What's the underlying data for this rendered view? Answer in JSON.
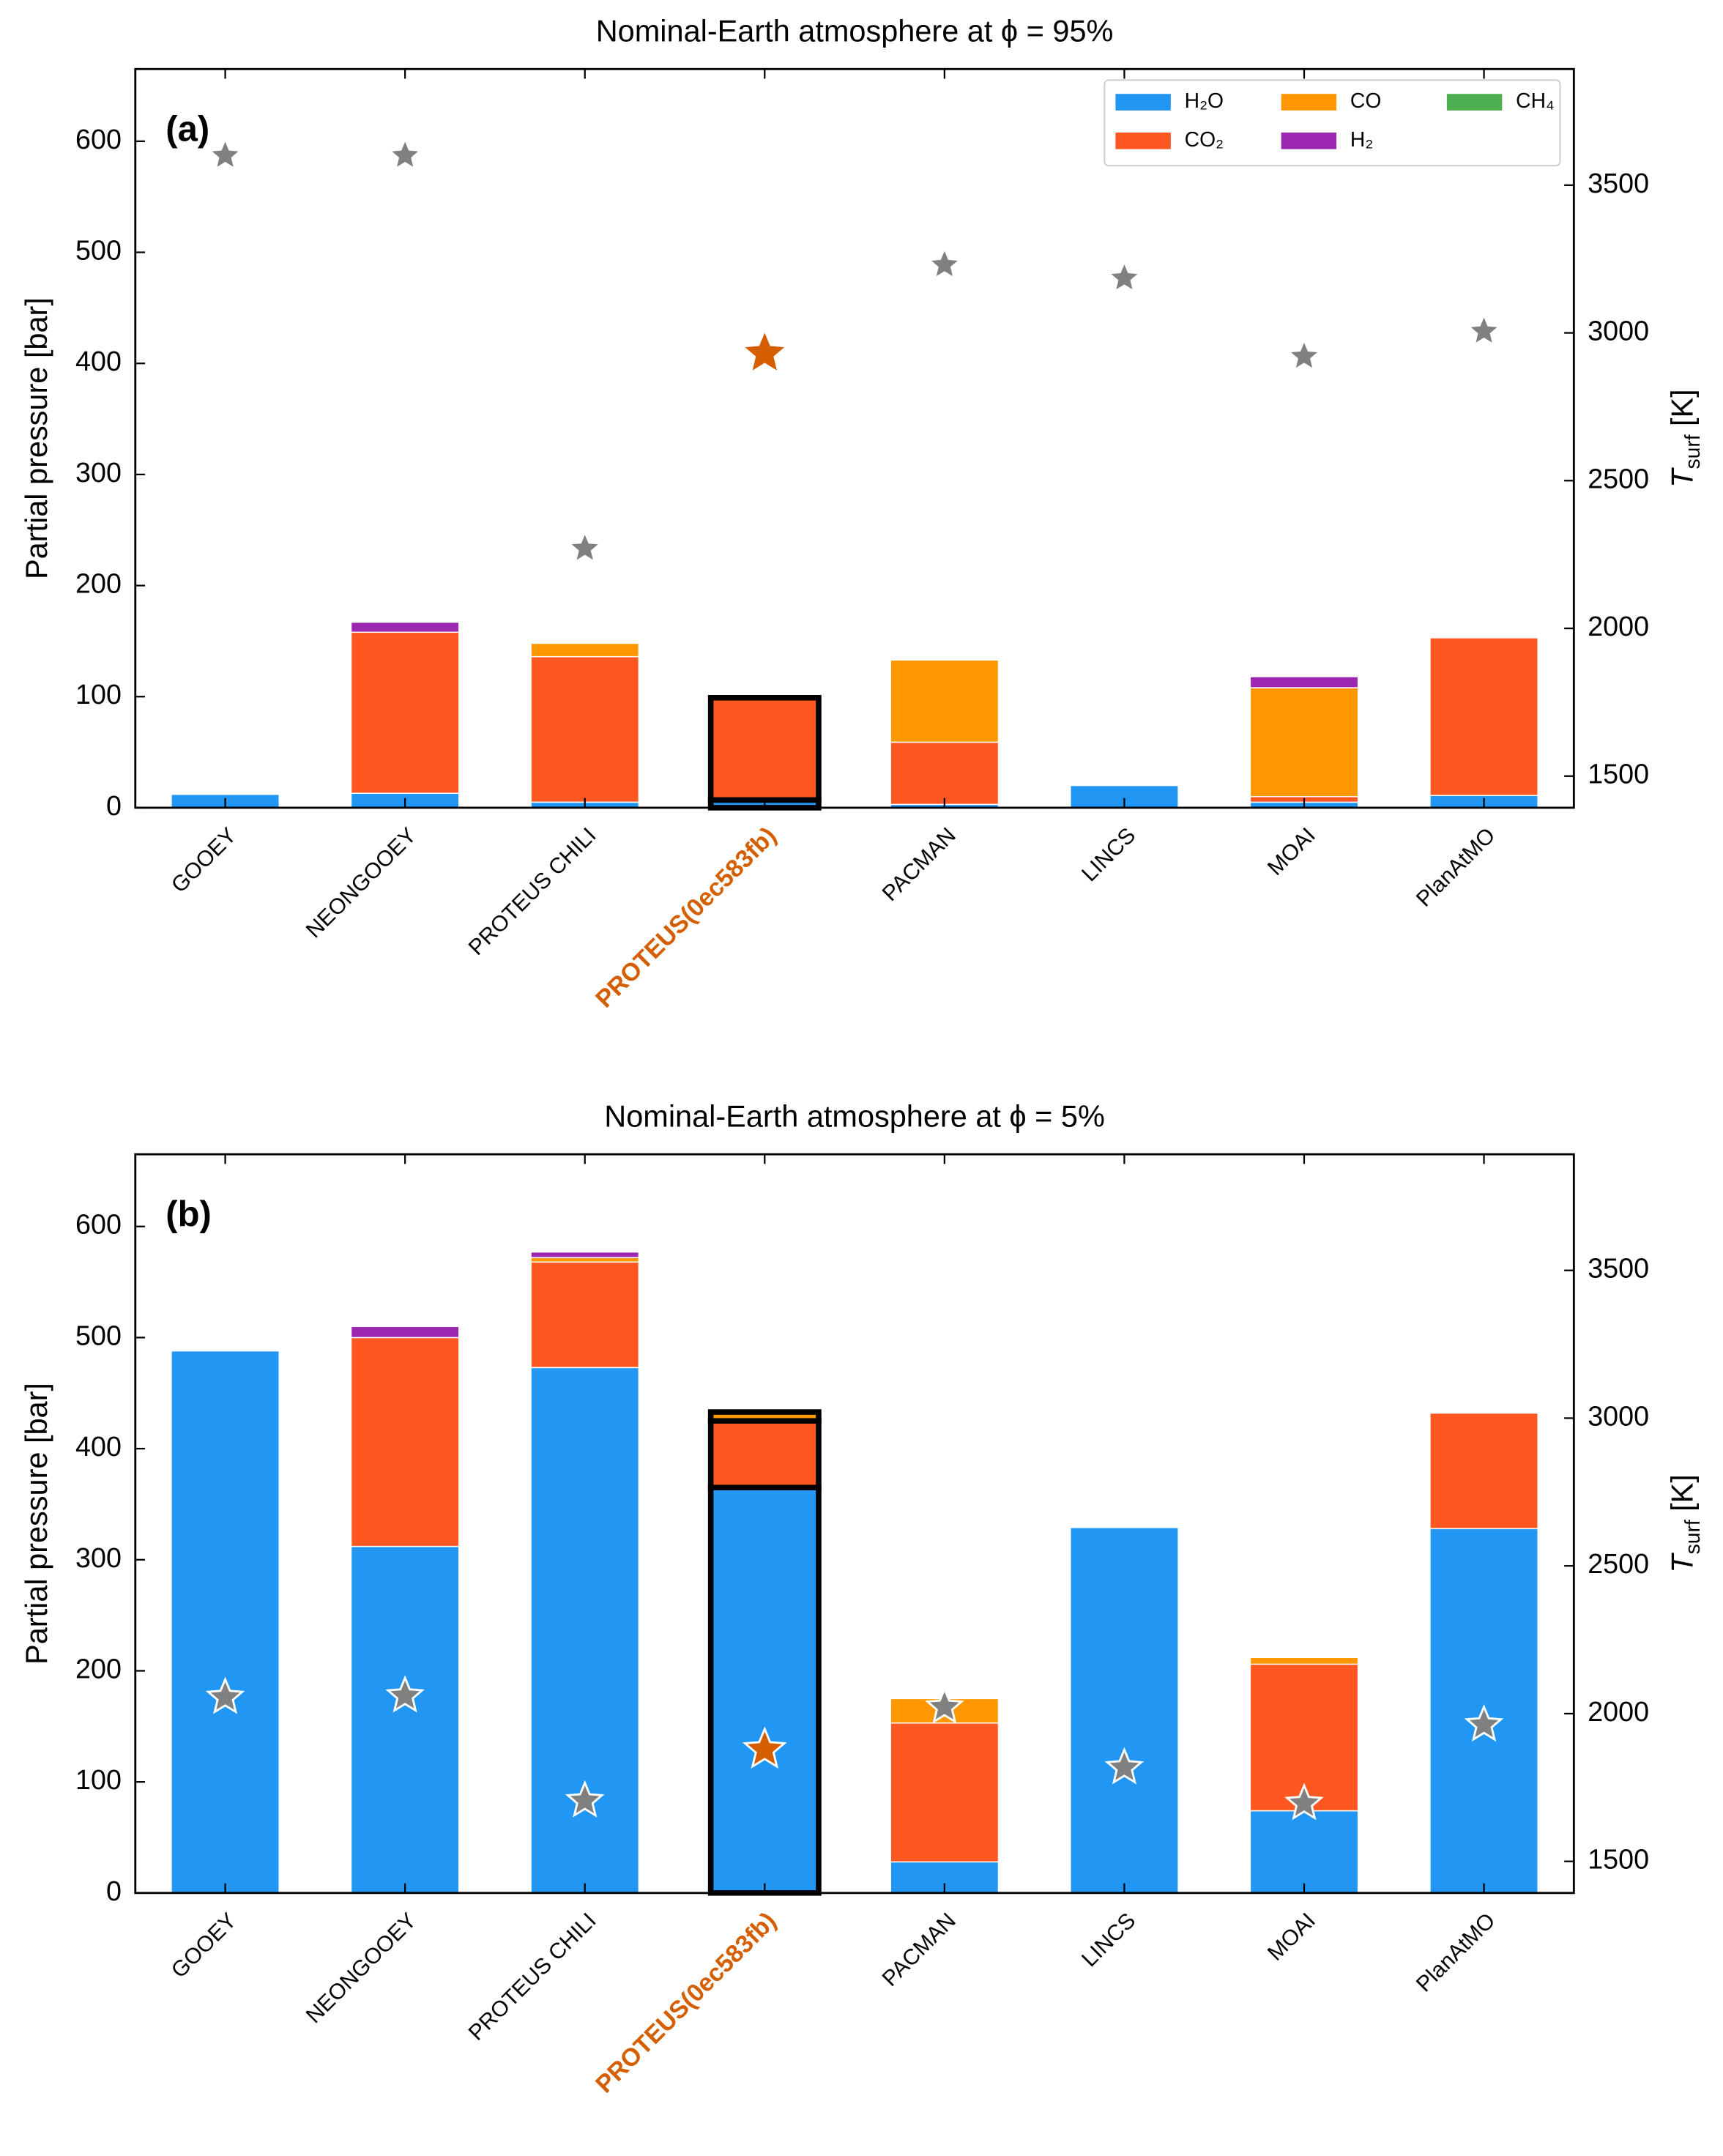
{
  "chart_data": [
    {
      "type": "bar",
      "title": "Nominal-Earth atmosphere at ϕ = 95%",
      "annotation": "(a)",
      "ylabel": "Partial pressure [bar]",
      "y2label_symbol": "T",
      "y2label_subscript": "surf",
      "y2label_unit": "[K]",
      "categories": [
        "GOOEY",
        "NEONGOOEY",
        "PROTEUS CHILI",
        "PROTEUS(0ec583fb)",
        "PACMAN",
        "LINCS",
        "MOAI",
        "PlanAtMO"
      ],
      "highlight_index": 3,
      "highlight_color": "#d55e00",
      "series": [
        {
          "name": "H₂O",
          "color": "#2196f3",
          "values": [
            12,
            13,
            5,
            7,
            3,
            20,
            5,
            11
          ]
        },
        {
          "name": "CO₂",
          "color": "#ff5722",
          "values": [
            0,
            145,
            131,
            92,
            56,
            0,
            5,
            142
          ]
        },
        {
          "name": "CO",
          "color": "#ff9800",
          "values": [
            0,
            0,
            12,
            0,
            74,
            0,
            98,
            0
          ]
        },
        {
          "name": "H₂",
          "color": "#9c27b0",
          "values": [
            0,
            9,
            0,
            0,
            0,
            0,
            10,
            0
          ]
        },
        {
          "name": "CH₄",
          "color": "#4caf50",
          "values": [
            0,
            0,
            0,
            0,
            0,
            0,
            0,
            0
          ]
        }
      ],
      "markers": {
        "axis": "y2",
        "color": "#808080",
        "values": [
          3600,
          3600,
          2270,
          2930,
          3230,
          3185,
          2920,
          3005
        ]
      },
      "ylim": [
        0,
        665
      ],
      "yticks": [
        0,
        100,
        200,
        300,
        400,
        500,
        600
      ],
      "y2lim": [
        1393,
        3893
      ],
      "y2ticks": [
        1500,
        2000,
        2500,
        3000,
        3500
      ],
      "legend": "upper right"
    },
    {
      "type": "bar",
      "title": "Nominal-Earth atmosphere at ϕ = 5%",
      "annotation": "(b)",
      "ylabel": "Partial pressure [bar]",
      "y2label_symbol": "T",
      "y2label_subscript": "surf",
      "y2label_unit": "[K]",
      "categories": [
        "GOOEY",
        "NEONGOOEY",
        "PROTEUS CHILI",
        "PROTEUS(0ec583fb)",
        "PACMAN",
        "LINCS",
        "MOAI",
        "PlanAtMO"
      ],
      "highlight_index": 3,
      "highlight_color": "#d55e00",
      "series": [
        {
          "color": "#2196f3",
          "values": [
            488,
            312,
            473,
            365,
            28,
            329,
            74,
            328
          ]
        },
        {
          "color": "#ff5722",
          "values": [
            0,
            188,
            95,
            60,
            125,
            0,
            132,
            104
          ]
        },
        {
          "color": "#ff9800",
          "values": [
            0,
            0,
            4,
            8,
            22,
            0,
            6,
            0
          ]
        },
        {
          "color": "#9c27b0",
          "values": [
            0,
            10,
            5,
            0,
            0,
            0,
            0,
            0
          ]
        },
        {
          "color": "#4caf50",
          "values": [
            0,
            0,
            0,
            0,
            0,
            0,
            0,
            0
          ]
        }
      ],
      "markers": {
        "axis": "y2",
        "color": "#808080",
        "values": [
          2055,
          2060,
          1705,
          1878,
          2022,
          1817,
          1696,
          1962
        ]
      },
      "ylim": [
        0,
        665
      ],
      "yticks": [
        0,
        100,
        200,
        300,
        400,
        500,
        600
      ],
      "y2lim": [
        1393,
        3893
      ],
      "y2ticks": [
        1500,
        2000,
        2500,
        3000,
        3500
      ]
    }
  ]
}
